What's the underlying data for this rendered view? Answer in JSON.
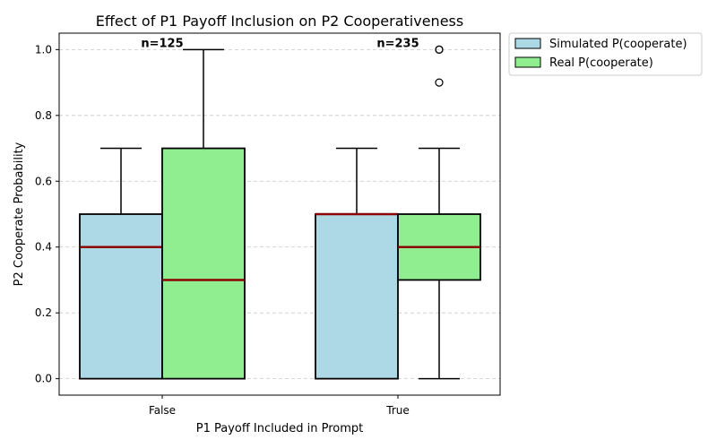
{
  "chart_data": {
    "type": "boxplot",
    "title": "Effect of P1 Payoff Inclusion on P2 Cooperativeness",
    "xlabel": "P1 Payoff Included in Prompt",
    "ylabel": "P2 Cooperate Probability",
    "ylim": [
      -0.05,
      1.05
    ],
    "yticks": [
      "0.0",
      "0.2",
      "0.4",
      "0.6",
      "0.8",
      "1.0"
    ],
    "ytick_values": [
      0.0,
      0.2,
      0.4,
      0.6,
      0.8,
      1.0
    ],
    "grid": "y-dashed",
    "legend_position": "outside-top-right",
    "categories": [
      "False",
      "True"
    ],
    "counts": [
      "n=125",
      "n=235"
    ],
    "series": [
      {
        "name": "Simulated P(cooperate)",
        "color": "#add8e6",
        "boxes": [
          {
            "whislo": 0.0,
            "q1": 0.0,
            "median": 0.4,
            "q3": 0.5,
            "whishi": 0.7,
            "fliers": []
          },
          {
            "whislo": 0.0,
            "q1": 0.0,
            "median": 0.5,
            "q3": 0.5,
            "whishi": 0.7,
            "fliers": []
          }
        ]
      },
      {
        "name": "Real P(cooperate)",
        "color": "#90ee90",
        "boxes": [
          {
            "whislo": 0.0,
            "q1": 0.0,
            "median": 0.3,
            "q3": 0.7,
            "whishi": 1.0,
            "fliers": []
          },
          {
            "whislo": 0.0,
            "q1": 0.3,
            "median": 0.4,
            "q3": 0.5,
            "whishi": 0.7,
            "fliers": [
              0.9,
              1.0,
              1.0
            ]
          }
        ]
      }
    ],
    "median_color": "#8b0000"
  }
}
